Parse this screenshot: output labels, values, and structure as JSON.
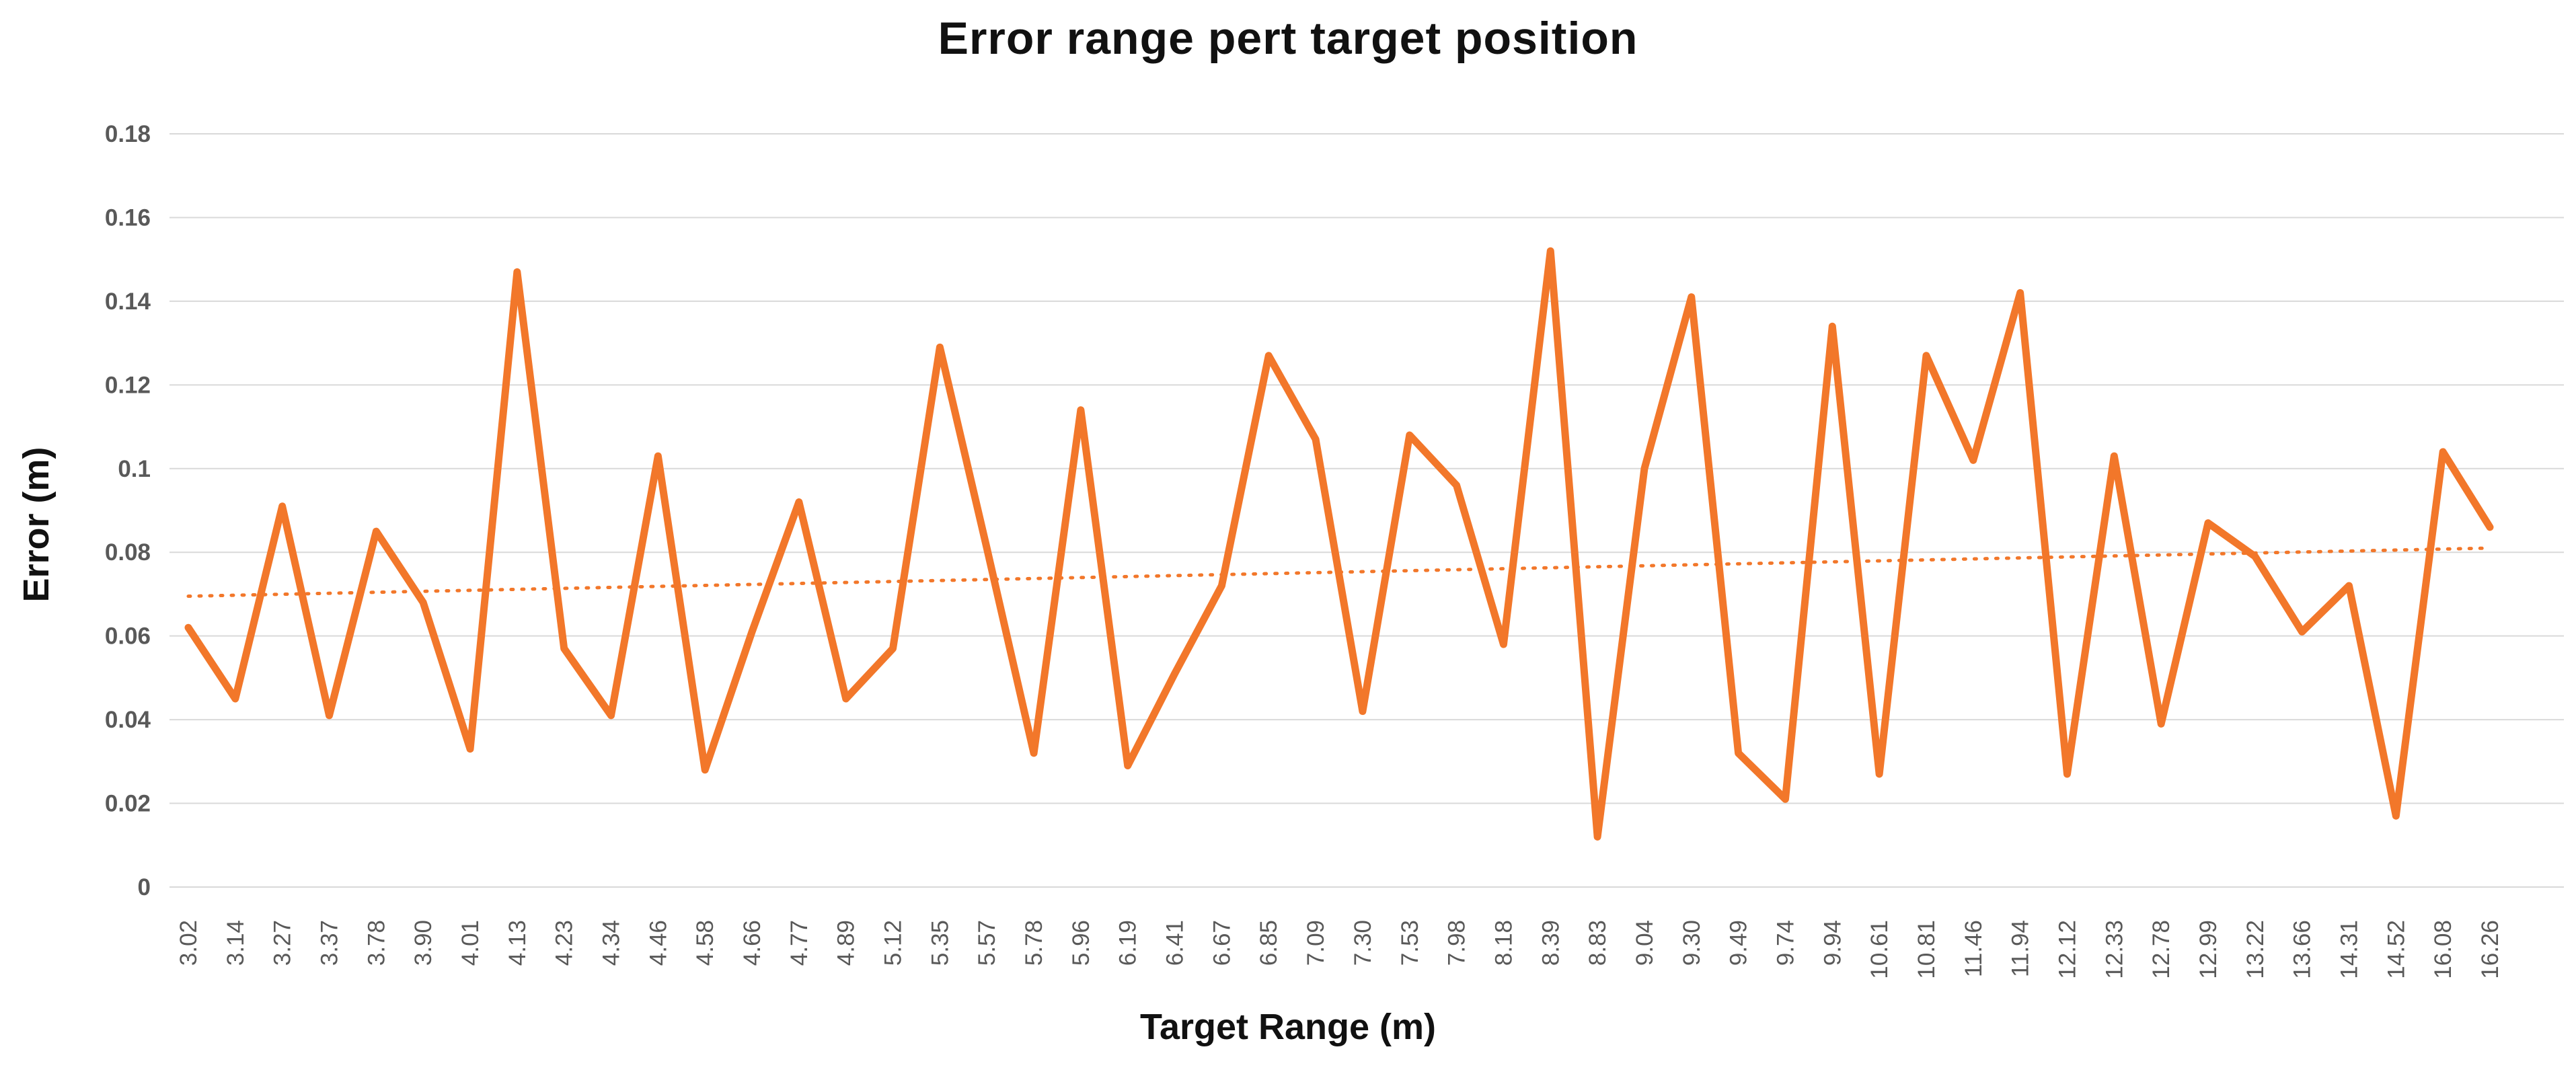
{
  "chart_data": {
    "type": "line",
    "title": "Error range pert target position",
    "xlabel": "Target Range (m)",
    "ylabel": "Error (m)",
    "categories": [
      "3.02",
      "3.14",
      "3.27",
      "3.37",
      "3.78",
      "3.90",
      "4.01",
      "4.13",
      "4.23",
      "4.34",
      "4.46",
      "4.58",
      "4.66",
      "4.77",
      "4.89",
      "5.12",
      "5.35",
      "5.57",
      "5.78",
      "5.96",
      "6.19",
      "6.41",
      "6.67",
      "6.85",
      "7.09",
      "7.30",
      "7.53",
      "7.98",
      "8.18",
      "8.39",
      "8.83",
      "9.04",
      "9.30",
      "9.49",
      "9.74",
      "9.94",
      "10.61",
      "10.81",
      "11.46",
      "11.94",
      "12.12",
      "12.33",
      "12.78",
      "12.99",
      "13.22",
      "13.66",
      "14.31",
      "14.52",
      "16.08",
      "16.26"
    ],
    "series": [
      {
        "name": "Error",
        "values": [
          0.062,
          0.045,
          0.091,
          0.041,
          0.085,
          0.068,
          0.033,
          0.147,
          0.057,
          0.041,
          0.103,
          0.028,
          0.061,
          0.092,
          0.045,
          0.057,
          0.129,
          0.081,
          0.032,
          0.114,
          0.029,
          0.051,
          0.072,
          0.127,
          0.107,
          0.042,
          0.108,
          0.096,
          0.058,
          0.152,
          0.012,
          0.1,
          0.141,
          0.032,
          0.021,
          0.134,
          0.027,
          0.127,
          0.102,
          0.142,
          0.027,
          0.103,
          0.039,
          0.087,
          0.079,
          0.061,
          0.072,
          0.017,
          0.104,
          0.086
        ]
      }
    ],
    "trendline": {
      "style": "dotted",
      "start_value": 0.0695,
      "end_value": 0.081
    },
    "ylim": [
      0,
      0.18
    ],
    "y_ticks": [
      "0.18",
      "0.16",
      "0.14",
      "0.12",
      "0.1",
      "0.08",
      "0.06",
      "0.04",
      "0.02",
      "0"
    ],
    "grid": true,
    "legend_position": "none",
    "colors": {
      "line": "#F2772A",
      "trendline": "#F2772A",
      "gridline": "#D9D9D9",
      "tick_label": "#595959",
      "title": "#111111"
    }
  }
}
